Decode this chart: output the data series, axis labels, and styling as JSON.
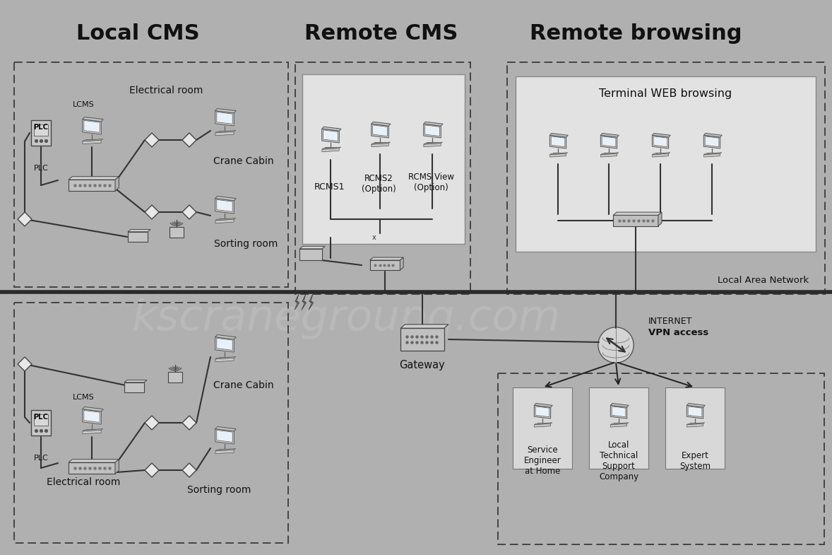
{
  "bg_color": "#b0b0b0",
  "title_local": "Local CMS",
  "title_remote": "Remote CMS",
  "title_browsing": "Remote browsing",
  "lan_label": "Local Area Network",
  "internet_label": "INTERNET",
  "vpn_label": "VPN access",
  "gateway_label": "Gateway",
  "electrical_room_label": "Electrical room",
  "crane_cabin_label": "Crane Cabin",
  "sorting_room_label": "Sorting room",
  "plc_label": "PLC",
  "lcms_label": "LCMS",
  "rcms1_label": "RCMS1",
  "rcms2_label": "RCMS2\n(Option)",
  "rcmsview_label": "RCMS View\n(Option)",
  "terminal_web_label": "Terminal WEB browsing",
  "service_engineer_label": "Service\nEngineer\nat Home",
  "local_tech_label": "Local\nTechnical\nSupport\nCompany",
  "expert_label": "Expert\nSystem",
  "watermark": "kscranegroupq.com"
}
